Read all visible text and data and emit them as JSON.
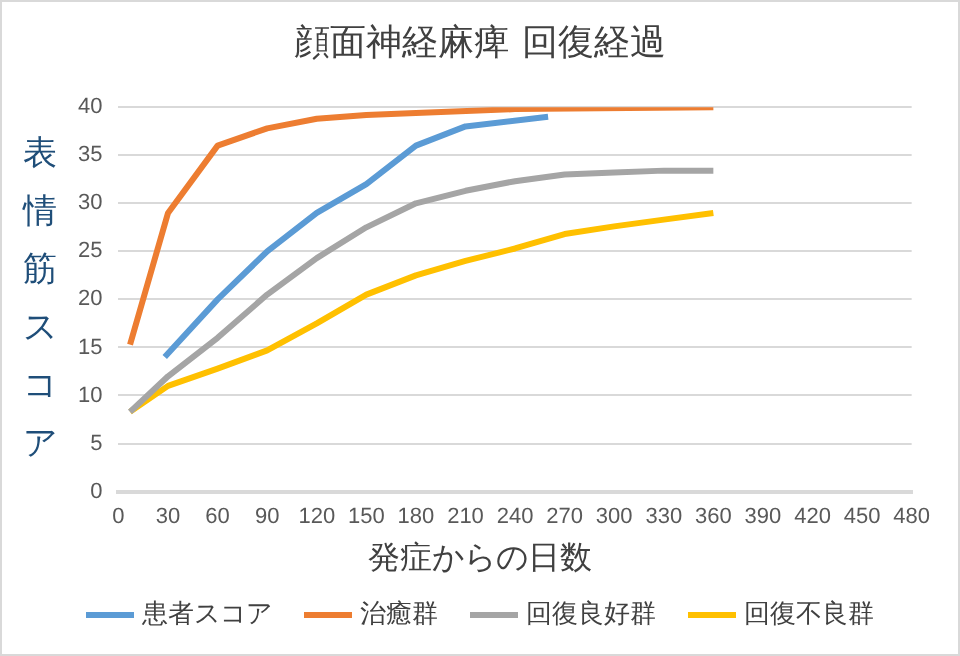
{
  "chart_data": {
    "type": "line",
    "title": "顔面神経麻痺  回復経過",
    "xlabel": "発症からの日数",
    "ylabel": "表情筋スコア",
    "xlim": [
      0,
      480
    ],
    "xticks": [
      0,
      30,
      60,
      90,
      120,
      150,
      180,
      210,
      240,
      270,
      300,
      330,
      360,
      390,
      420,
      450,
      480
    ],
    "ylim": [
      0,
      40
    ],
    "yticks": [
      0,
      5,
      10,
      15,
      20,
      25,
      30,
      35,
      40
    ],
    "grid": "y",
    "legend": "bottom",
    "marker": "none",
    "line_style": "solid",
    "series": [
      {
        "name": "患者スコア",
        "color": "#5b9bd5",
        "x": [
          28,
          60,
          90,
          120,
          150,
          180,
          210,
          260
        ],
        "values": [
          14,
          20,
          25,
          29,
          32,
          36,
          38,
          39
        ]
      },
      {
        "name": "治癒群",
        "color": "#ed7d31",
        "x": [
          7,
          30,
          60,
          90,
          120,
          150,
          180,
          240,
          360
        ],
        "values": [
          15.3,
          29,
          36,
          37.8,
          38.8,
          39.2,
          39.4,
          39.8,
          40
        ]
      },
      {
        "name": "回復良好群",
        "color": "#a5a5a5",
        "x": [
          7,
          30,
          60,
          90,
          120,
          150,
          180,
          210,
          240,
          270,
          300,
          330,
          360
        ],
        "values": [
          8.3,
          12,
          16,
          20.5,
          24.3,
          27.5,
          30,
          31.3,
          32.3,
          33,
          33.2,
          33.4,
          33.4
        ]
      },
      {
        "name": "回復不良群",
        "color": "#ffc000",
        "x": [
          7,
          30,
          60,
          90,
          120,
          150,
          180,
          210,
          240,
          270,
          300,
          330,
          360
        ],
        "values": [
          8.3,
          11,
          12.8,
          14.7,
          17.5,
          20.5,
          22.5,
          24,
          25.3,
          26.8,
          27.6,
          28.3,
          29
        ]
      }
    ]
  }
}
